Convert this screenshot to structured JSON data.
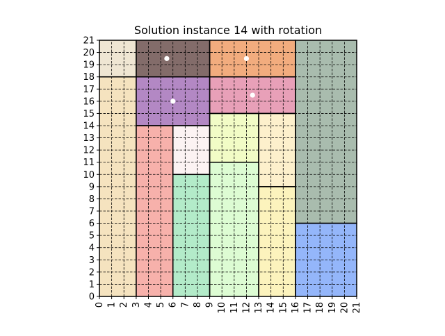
{
  "title": "Solution instance 14 with rotation",
  "grid": {
    "width": 21,
    "height": 21,
    "grid_lines": true
  },
  "x_ticks": [
    "0",
    "1",
    "2",
    "3",
    "4",
    "5",
    "6",
    "7",
    "8",
    "9",
    "10",
    "11",
    "12",
    "13",
    "14",
    "15",
    "16",
    "17",
    "18",
    "19",
    "20",
    "21"
  ],
  "y_ticks": [
    "0",
    "1",
    "2",
    "3",
    "4",
    "5",
    "6",
    "7",
    "8",
    "9",
    "10",
    "11",
    "12",
    "13",
    "14",
    "15",
    "16",
    "17",
    "18",
    "19",
    "20",
    "21"
  ],
  "rectangles": [
    {
      "x0": 0,
      "y0": 18,
      "x1": 3,
      "y1": 21,
      "color": "#efe6d3",
      "rotated": false
    },
    {
      "x0": 0,
      "y0": 0,
      "x1": 3,
      "y1": 18,
      "color": "#f5e3bf",
      "rotated": false
    },
    {
      "x0": 3,
      "y0": 18,
      "x1": 9,
      "y1": 21,
      "color": "#836c6a",
      "rotated": true
    },
    {
      "x0": 9,
      "y0": 18,
      "x1": 16,
      "y1": 21,
      "color": "#f2ac7e",
      "rotated": true
    },
    {
      "x0": 16,
      "y0": 6,
      "x1": 21,
      "y1": 21,
      "color": "#a9bcae",
      "rotated": false
    },
    {
      "x0": 3,
      "y0": 14,
      "x1": 9,
      "y1": 18,
      "color": "#b388c4",
      "rotated": true
    },
    {
      "x0": 9,
      "y0": 15,
      "x1": 16,
      "y1": 18,
      "color": "#e8a0b8",
      "rotated": true
    },
    {
      "x0": 3,
      "y0": 0,
      "x1": 6,
      "y1": 14,
      "color": "#f7b1ab",
      "rotated": false
    },
    {
      "x0": 6,
      "y0": 10,
      "x1": 9,
      "y1": 14,
      "color": "#fcf3f3",
      "rotated": false
    },
    {
      "x0": 6,
      "y0": 0,
      "x1": 9,
      "y1": 10,
      "color": "#b3ebc9",
      "rotated": false
    },
    {
      "x0": 9,
      "y0": 11,
      "x1": 13,
      "y1": 15,
      "color": "#f2fcc6",
      "rotated": false
    },
    {
      "x0": 9,
      "y0": 0,
      "x1": 13,
      "y1": 11,
      "color": "#ddfcd3",
      "rotated": false
    },
    {
      "x0": 13,
      "y0": 9,
      "x1": 16,
      "y1": 15,
      "color": "#fdf0cc",
      "rotated": false
    },
    {
      "x0": 13,
      "y0": 0,
      "x1": 16,
      "y1": 9,
      "color": "#fcf3bd",
      "rotated": false
    },
    {
      "x0": 16,
      "y0": 0,
      "x1": 21,
      "y1": 6,
      "color": "#94b6fa",
      "rotated": false
    }
  ],
  "rotation_markers": [
    {
      "x": 5.5,
      "y": 19.5
    },
    {
      "x": 12.0,
      "y": 19.5
    },
    {
      "x": 6.0,
      "y": 16.0
    },
    {
      "x": 12.5,
      "y": 16.5
    }
  ]
}
